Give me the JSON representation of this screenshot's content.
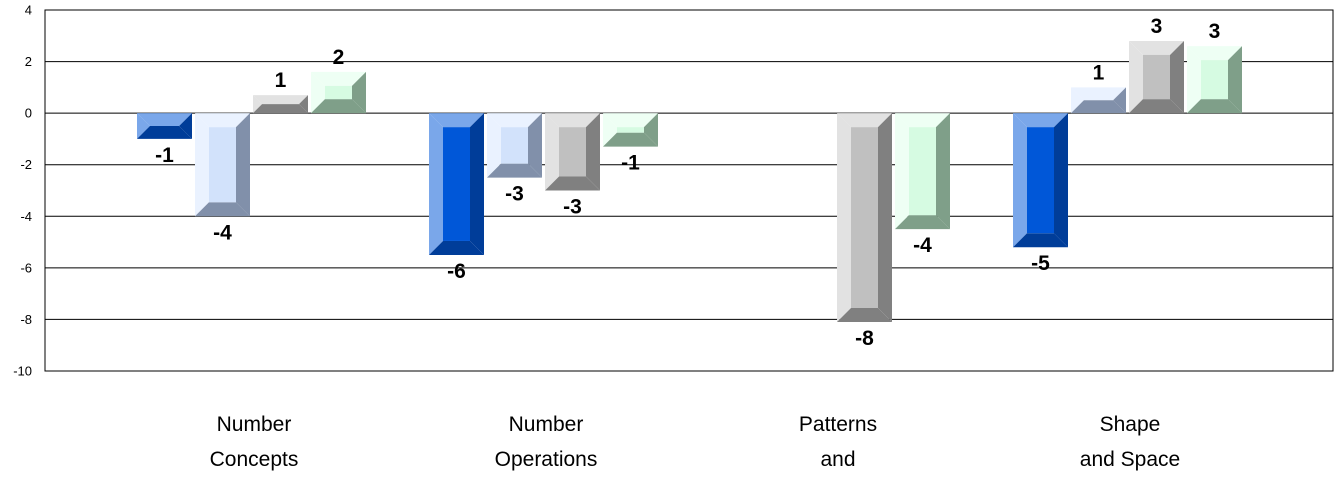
{
  "chart_data": {
    "type": "bar",
    "categories": [
      [
        "Number",
        "Concepts"
      ],
      [
        "Number",
        "Operations"
      ],
      [
        "Patterns",
        "and"
      ],
      [
        "Shape",
        "and Space"
      ]
    ],
    "series": [
      {
        "values": [
          -1,
          -5.5,
          null,
          -5.2
        ],
        "labels": [
          "-1",
          "-6",
          "",
          "-5"
        ],
        "colors": {
          "face": "#0057d8",
          "light": "#7aa7ea",
          "dark": "#003d99"
        }
      },
      {
        "values": [
          -4,
          -2.5,
          null,
          1
        ],
        "labels": [
          "-4",
          "-3",
          "",
          "1"
        ],
        "colors": {
          "face": "#d2e2fb",
          "light": "#eaf2ff",
          "dark": "#8190aa"
        }
      },
      {
        "values": [
          0.7,
          -3,
          -8.1,
          2.8
        ],
        "labels": [
          "1",
          "-3",
          "-8",
          "3"
        ],
        "colors": {
          "face": "#c0c0c0",
          "light": "#e2e2e2",
          "dark": "#808080"
        }
      },
      {
        "values": [
          1.6,
          -1.3,
          -4.5,
          2.6
        ],
        "labels": [
          "2",
          "-1",
          "-4",
          "3"
        ],
        "colors": {
          "face": "#d6fbe2",
          "light": "#eefff4",
          "dark": "#7f9f89"
        }
      }
    ],
    "ylim": [
      -10,
      4
    ],
    "yticks": [
      4,
      2,
      0,
      -2,
      -4,
      -6,
      -8,
      -10
    ],
    "grid": true,
    "legend": "none"
  }
}
